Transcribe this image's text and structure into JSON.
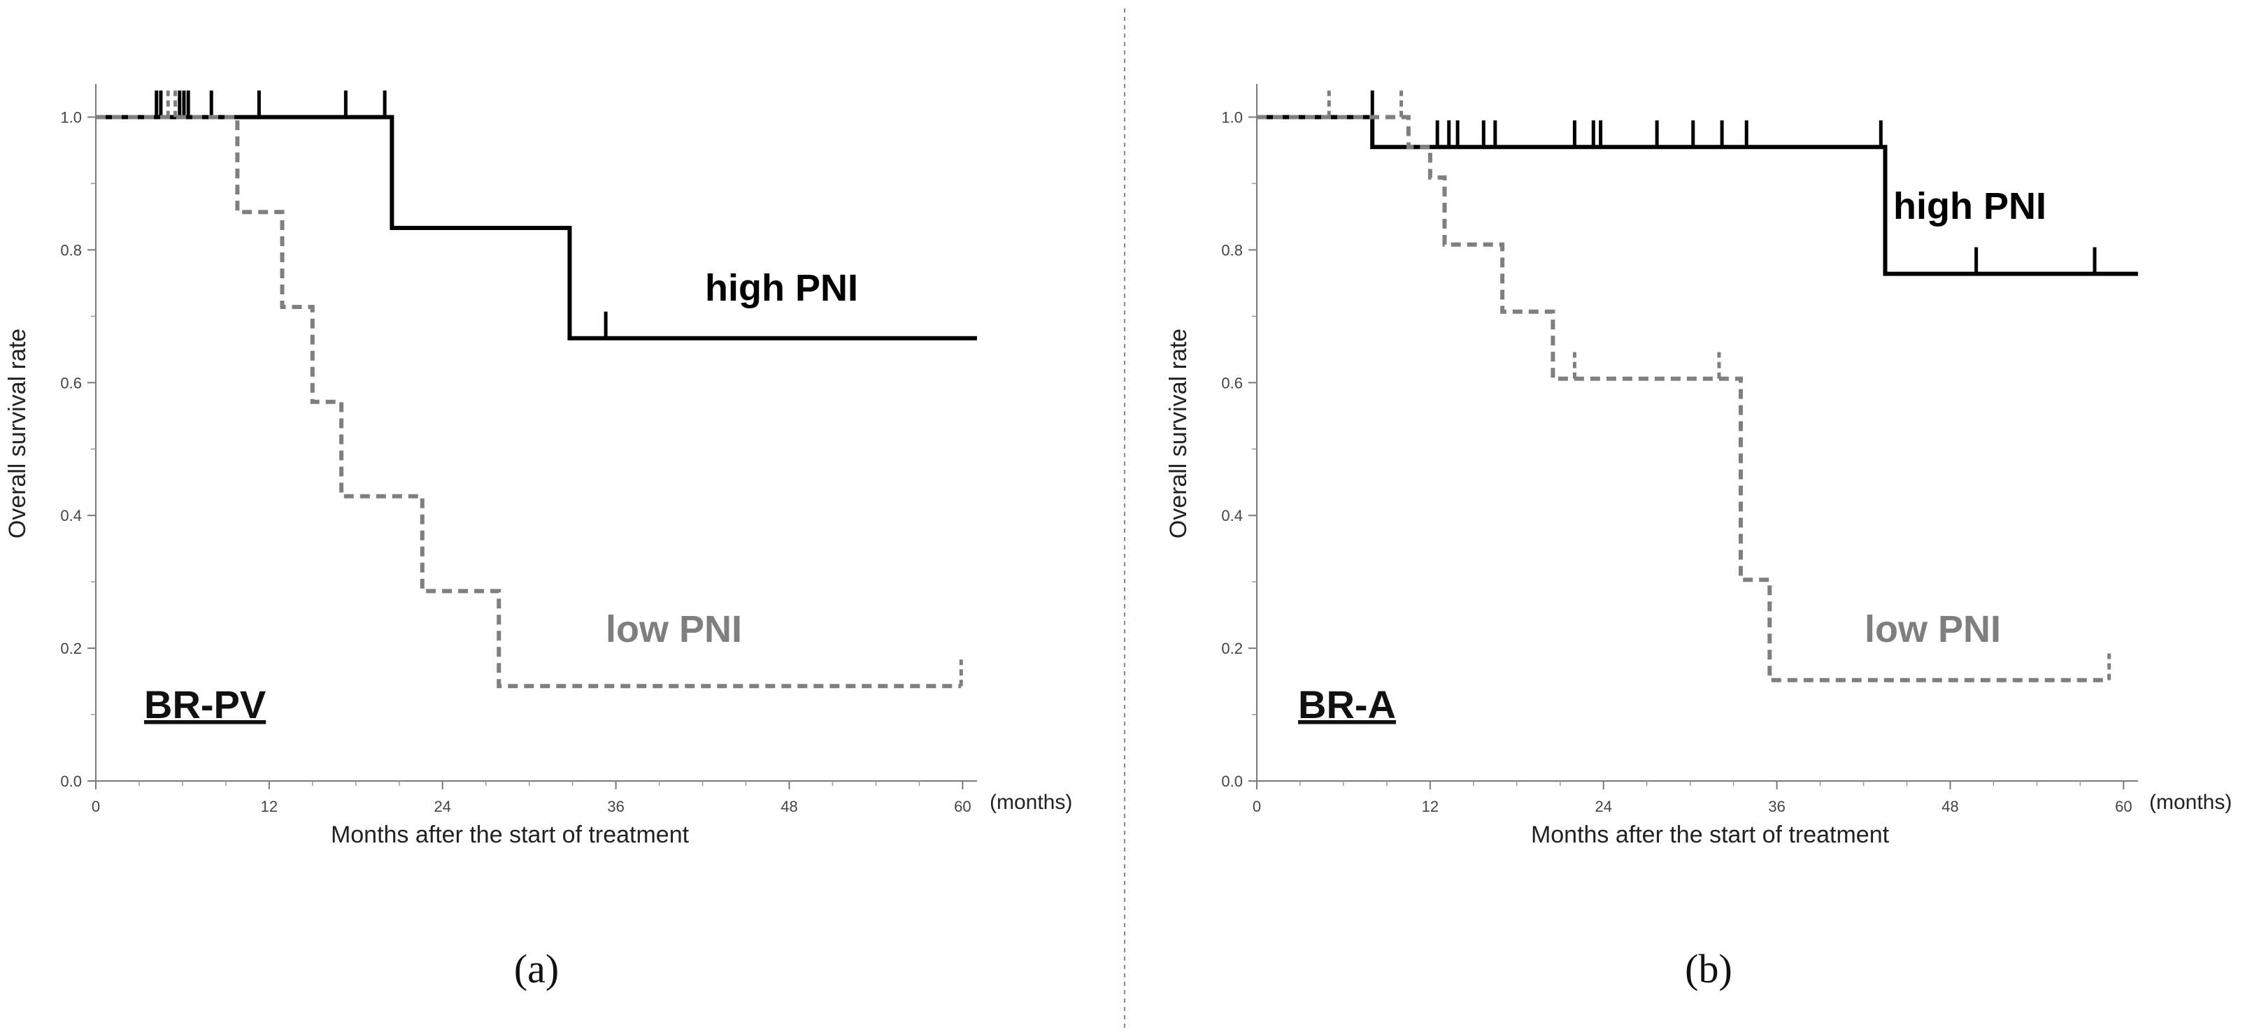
{
  "colors": {
    "high": "#000000",
    "low": "#7f7f7f",
    "axis": "#7a7a7a",
    "text": "#222222"
  },
  "chart_data": [
    {
      "type": "line",
      "subtitle": "(a)",
      "panel_label": "BR-PV",
      "xlabel": "Months after the start of treatment",
      "ylabel": "Overall survival rate",
      "x_unit": "(months)",
      "xlim": [
        0,
        61
      ],
      "ylim": [
        0,
        1.05
      ],
      "x_ticks": [
        0,
        12,
        24,
        36,
        48,
        60
      ],
      "x_tick_labels": [
        "0",
        "12",
        "24",
        "36",
        "48",
        "60"
      ],
      "y_ticks": [
        0,
        0.2,
        0.4,
        0.6,
        0.8,
        1.0
      ],
      "y_tick_labels": [
        "0.0",
        "0.2",
        "0.4",
        "0.6",
        "0.8",
        "1.0"
      ],
      "series": [
        {
          "name": "high PNI",
          "style": "solid",
          "x": [
            0,
            20.5,
            20.5,
            32.8,
            32.8,
            61
          ],
          "y": [
            1.0,
            1.0,
            0.833,
            0.833,
            0.667,
            0.667
          ],
          "censor_x": [
            4.2,
            4.5,
            5.8,
            6.1,
            6.4,
            8.0,
            11.3,
            17.3,
            20.0,
            35.3
          ],
          "censor_y": [
            1.0,
            1.0,
            1.0,
            1.0,
            1.0,
            1.0,
            1.0,
            1.0,
            1.0,
            0.667
          ]
        },
        {
          "name": "low PNI",
          "style": "dashed",
          "x": [
            0,
            9.8,
            9.8,
            12.9,
            12.9,
            15.0,
            15.0,
            17.0,
            17.0,
            22.6,
            22.6,
            27.9,
            27.9,
            59.9
          ],
          "y": [
            1.0,
            1.0,
            0.857,
            0.857,
            0.714,
            0.714,
            0.571,
            0.571,
            0.429,
            0.429,
            0.286,
            0.286,
            0.143,
            0.143
          ],
          "censor_x": [
            5.0,
            5.5,
            59.9
          ],
          "censor_y": [
            1.0,
            1.0,
            0.143
          ]
        }
      ]
    },
    {
      "type": "line",
      "subtitle": "(b)",
      "panel_label": "BR-A",
      "xlabel": "Months after the start of treatment",
      "ylabel": "Overall survival rate",
      "x_unit": "(months)",
      "xlim": [
        0,
        61
      ],
      "ylim": [
        0,
        1.05
      ],
      "x_ticks": [
        0,
        12,
        24,
        36,
        48,
        60
      ],
      "x_tick_labels": [
        "0",
        "12",
        "24",
        "36",
        "48",
        "60"
      ],
      "y_ticks": [
        0,
        0.2,
        0.4,
        0.6,
        0.8,
        1.0
      ],
      "y_tick_labels": [
        "0.0",
        "0.2",
        "0.4",
        "0.6",
        "0.8",
        "1.0"
      ],
      "series": [
        {
          "name": "high PNI",
          "style": "solid",
          "x": [
            0,
            8.0,
            8.0,
            43.5,
            43.5,
            61
          ],
          "y": [
            1.0,
            1.0,
            0.955,
            0.955,
            0.764,
            0.764
          ],
          "censor_x": [
            8.0,
            12.5,
            13.3,
            13.9,
            15.7,
            16.5,
            22.0,
            23.3,
            23.8,
            27.7,
            30.2,
            32.2,
            33.9,
            43.2,
            49.8,
            58.0
          ],
          "censor_y": [
            1.0,
            0.955,
            0.955,
            0.955,
            0.955,
            0.955,
            0.955,
            0.955,
            0.955,
            0.955,
            0.955,
            0.955,
            0.955,
            0.955,
            0.764,
            0.764
          ]
        },
        {
          "name": "low PNI",
          "style": "dashed",
          "x": [
            0,
            10.5,
            10.5,
            12.0,
            12.0,
            13.0,
            13.0,
            17.0,
            17.0,
            20.5,
            20.5,
            33.5,
            33.5,
            35.5,
            35.5,
            59.0
          ],
          "y": [
            1.0,
            1.0,
            0.955,
            0.955,
            0.909,
            0.909,
            0.808,
            0.808,
            0.707,
            0.707,
            0.606,
            0.606,
            0.303,
            0.303,
            0.152,
            0.152
          ],
          "censor_x": [
            5.0,
            10.0,
            22.0,
            32.0,
            59.0
          ],
          "censor_y": [
            1.0,
            1.0,
            0.606,
            0.606,
            0.152
          ]
        }
      ]
    }
  ]
}
